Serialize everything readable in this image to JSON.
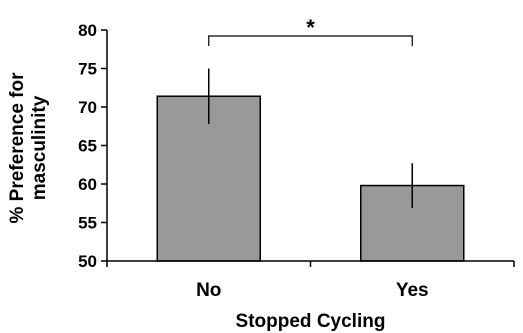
{
  "chart_data": {
    "type": "bar",
    "categories": [
      "No",
      "Yes"
    ],
    "values": [
      71.4,
      59.8
    ],
    "error": [
      3.6,
      2.9
    ],
    "xlabel": "Stopped Cycling",
    "ylabel_lines": [
      "% Preference for",
      "masculinity"
    ],
    "ylim": [
      50,
      80
    ],
    "yticks": [
      50,
      55,
      60,
      65,
      70,
      75,
      80
    ],
    "bar_color": "#999999",
    "significance": {
      "between": [
        "No",
        "Yes"
      ],
      "label": "*"
    },
    "grid": false,
    "legend": "none"
  }
}
